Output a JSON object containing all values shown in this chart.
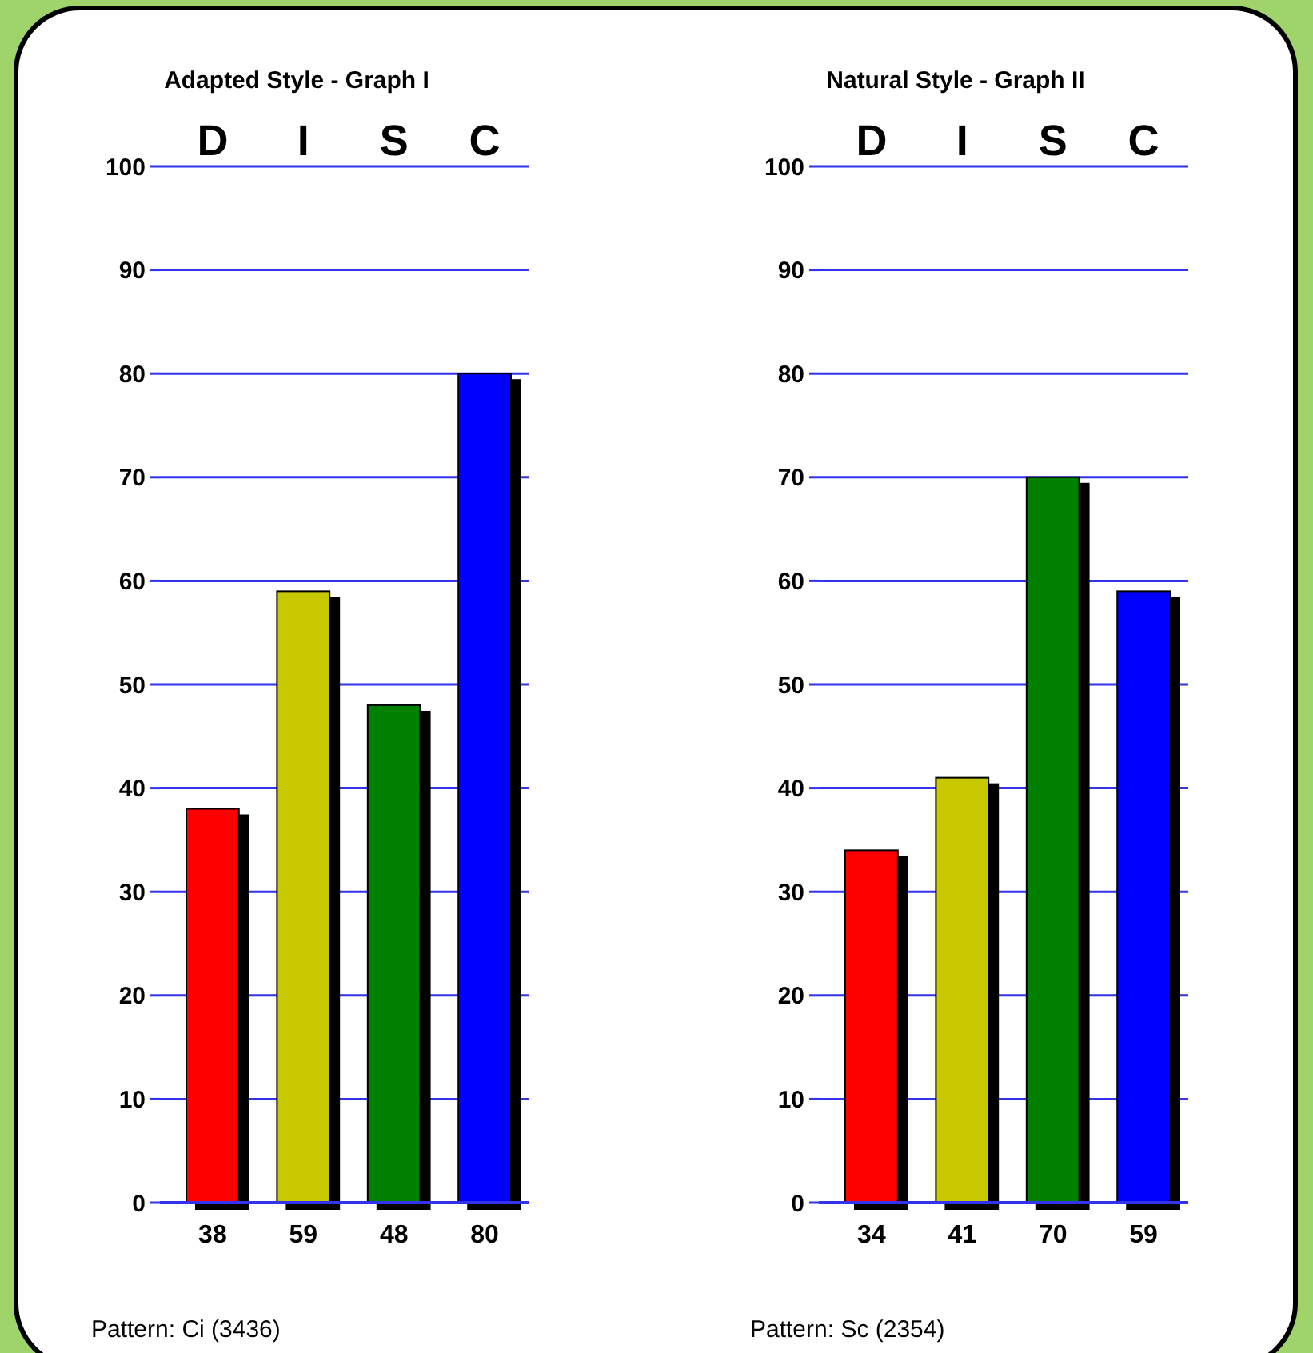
{
  "chart_data": [
    {
      "type": "bar",
      "title": "Adapted Style - Graph I",
      "categories": [
        "D",
        "I",
        "S",
        "C"
      ],
      "values": [
        38,
        59,
        48,
        80
      ],
      "colors": [
        "#ff0000",
        "#c8c800",
        "#008000",
        "#0000ff"
      ],
      "ylim": [
        0,
        100
      ],
      "yticks": [
        0,
        10,
        20,
        30,
        40,
        50,
        60,
        70,
        80,
        90,
        100
      ],
      "grid": "y",
      "data_labels": true,
      "annotations": [
        "Pattern: Ci (3436)"
      ]
    },
    {
      "type": "bar",
      "title": "Natural Style - Graph II",
      "categories": [
        "D",
        "I",
        "S",
        "C"
      ],
      "values": [
        34,
        41,
        70,
        59
      ],
      "colors": [
        "#ff0000",
        "#c8c800",
        "#008000",
        "#0000ff"
      ],
      "ylim": [
        0,
        100
      ],
      "yticks": [
        0,
        10,
        20,
        30,
        40,
        50,
        60,
        70,
        80,
        90,
        100
      ],
      "grid": "y",
      "data_labels": true,
      "annotations": [
        "Pattern: Sc (2354)"
      ]
    }
  ]
}
